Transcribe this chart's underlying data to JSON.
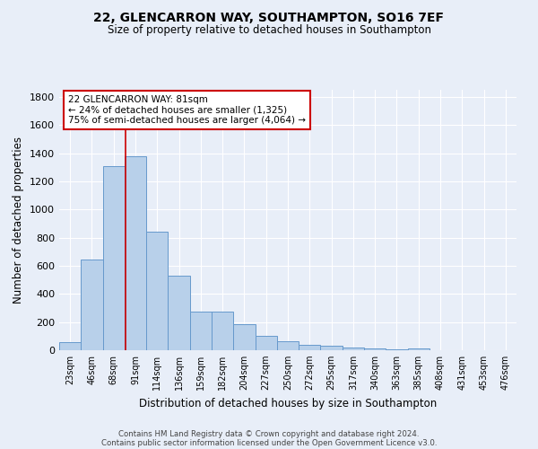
{
  "title1": "22, GLENCARRON WAY, SOUTHAMPTON, SO16 7EF",
  "title2": "Size of property relative to detached houses in Southampton",
  "xlabel": "Distribution of detached houses by size in Southampton",
  "ylabel": "Number of detached properties",
  "categories": [
    "23sqm",
    "46sqm",
    "68sqm",
    "91sqm",
    "114sqm",
    "136sqm",
    "159sqm",
    "182sqm",
    "204sqm",
    "227sqm",
    "250sqm",
    "272sqm",
    "295sqm",
    "317sqm",
    "340sqm",
    "363sqm",
    "385sqm",
    "408sqm",
    "431sqm",
    "453sqm",
    "476sqm"
  ],
  "values": [
    55,
    645,
    1310,
    1375,
    845,
    530,
    275,
    275,
    185,
    105,
    65,
    38,
    33,
    22,
    10,
    5,
    12,
    0,
    0,
    0,
    0
  ],
  "bar_color": "#b8d0ea",
  "bar_edgecolor": "#6699cc",
  "background_color": "#e8eef8",
  "grid_color": "#ffffff",
  "vline_color": "#cc0000",
  "annotation_text": "22 GLENCARRON WAY: 81sqm\n← 24% of detached houses are smaller (1,325)\n75% of semi-detached houses are larger (4,064) →",
  "annotation_box_color": "white",
  "annotation_box_edgecolor": "#cc0000",
  "ylim": [
    0,
    1850
  ],
  "yticks": [
    0,
    200,
    400,
    600,
    800,
    1000,
    1200,
    1400,
    1600,
    1800
  ],
  "footer1": "Contains HM Land Registry data © Crown copyright and database right 2024.",
  "footer2": "Contains public sector information licensed under the Open Government Licence v3.0."
}
